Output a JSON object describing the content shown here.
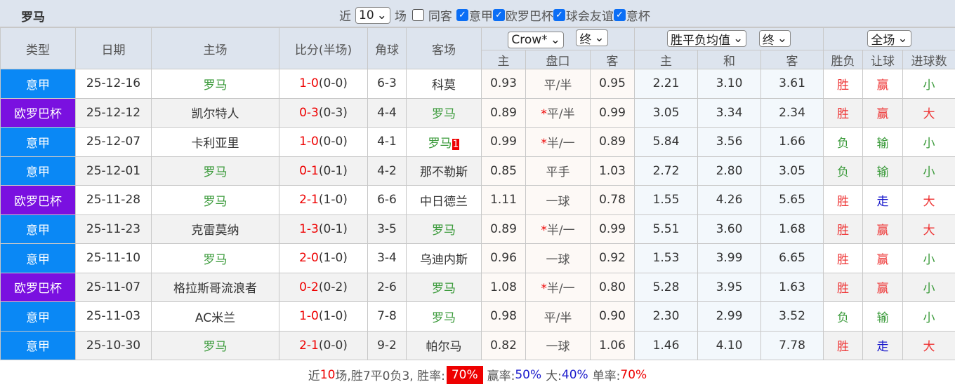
{
  "title": "罗马",
  "filters": {
    "near_label": "近",
    "count": "10",
    "games_label": "场",
    "same_away": "同客",
    "leagues": [
      "意甲",
      "欧罗巴杯",
      "球会友谊",
      "意杯"
    ]
  },
  "headers": {
    "type": "类型",
    "date": "日期",
    "home": "主场",
    "score": "比分(半场)",
    "corner": "角球",
    "away": "客场",
    "company": "Crow*",
    "final1": "终",
    "avg": "胜平负均值",
    "final2": "终",
    "period": "全场",
    "sub": [
      "主",
      "盘口",
      "客",
      "主",
      "和",
      "客",
      "胜负",
      "让球",
      "进球数"
    ]
  },
  "colors": {
    "意甲": "#0a88f5",
    "欧罗巴杯": "#7a10e0"
  },
  "rows": [
    {
      "type": "意甲",
      "date": "25-12-16",
      "home": "罗马",
      "score": "1-0",
      "half": "(0-0)",
      "corner": "6-3",
      "away": "科莫",
      "roma": "home",
      "a1": "0.93",
      "line": "平/半",
      "star": false,
      "a2": "0.95",
      "w": "2.21",
      "d": "3.10",
      "l": "3.61",
      "r": "胜",
      "h": "赢",
      "g": "小"
    },
    {
      "type": "欧罗巴杯",
      "date": "25-12-12",
      "home": "凯尔特人",
      "score": "0-3",
      "half": "(0-3)",
      "corner": "4-4",
      "away": "罗马",
      "roma": "away",
      "a1": "0.89",
      "line": "平/半",
      "star": true,
      "a2": "0.99",
      "w": "3.05",
      "d": "3.34",
      "l": "2.34",
      "r": "胜",
      "h": "赢",
      "g": "大"
    },
    {
      "type": "意甲",
      "date": "25-12-07",
      "home": "卡利亚里",
      "score": "1-0",
      "half": "(0-0)",
      "corner": "4-1",
      "away": "罗马",
      "roma": "away",
      "red": "1",
      "a1": "0.99",
      "line": "半/一",
      "star": true,
      "a2": "0.89",
      "w": "5.84",
      "d": "3.56",
      "l": "1.66",
      "r": "负",
      "h": "输",
      "g": "小"
    },
    {
      "type": "意甲",
      "date": "25-12-01",
      "home": "罗马",
      "score": "0-1",
      "half": "(0-1)",
      "corner": "4-2",
      "away": "那不勒斯",
      "roma": "home",
      "a1": "0.85",
      "line": "平手",
      "star": false,
      "a2": "1.03",
      "w": "2.72",
      "d": "2.80",
      "l": "3.05",
      "r": "负",
      "h": "输",
      "g": "小"
    },
    {
      "type": "欧罗巴杯",
      "date": "25-11-28",
      "home": "罗马",
      "score": "2-1",
      "half": "(1-0)",
      "corner": "6-6",
      "away": "中日德兰",
      "roma": "home",
      "a1": "1.11",
      "line": "一球",
      "star": false,
      "a2": "0.78",
      "w": "1.55",
      "d": "4.26",
      "l": "5.65",
      "r": "胜",
      "h": "走",
      "g": "大"
    },
    {
      "type": "意甲",
      "date": "25-11-23",
      "home": "克雷莫纳",
      "score": "1-3",
      "half": "(0-1)",
      "corner": "3-5",
      "away": "罗马",
      "roma": "away",
      "a1": "0.89",
      "line": "半/一",
      "star": true,
      "a2": "0.99",
      "w": "5.51",
      "d": "3.60",
      "l": "1.68",
      "r": "胜",
      "h": "赢",
      "g": "大"
    },
    {
      "type": "意甲",
      "date": "25-11-10",
      "home": "罗马",
      "score": "2-0",
      "half": "(1-0)",
      "corner": "3-4",
      "away": "乌迪内斯",
      "roma": "home",
      "a1": "0.96",
      "line": "一球",
      "star": false,
      "a2": "0.92",
      "w": "1.53",
      "d": "3.99",
      "l": "6.65",
      "r": "胜",
      "h": "赢",
      "g": "小"
    },
    {
      "type": "欧罗巴杯",
      "date": "25-11-07",
      "home": "格拉斯哥流浪者",
      "score": "0-2",
      "half": "(0-2)",
      "corner": "2-6",
      "away": "罗马",
      "roma": "away",
      "a1": "1.08",
      "line": "半/一",
      "star": true,
      "a2": "0.80",
      "w": "5.28",
      "d": "3.95",
      "l": "1.63",
      "r": "胜",
      "h": "赢",
      "g": "小"
    },
    {
      "type": "意甲",
      "date": "25-11-03",
      "home": "AC米兰",
      "score": "1-0",
      "half": "(1-0)",
      "corner": "7-8",
      "away": "罗马",
      "roma": "away",
      "a1": "0.98",
      "line": "平/半",
      "star": false,
      "a2": "0.90",
      "w": "2.30",
      "d": "2.99",
      "l": "3.52",
      "r": "负",
      "h": "输",
      "g": "小"
    },
    {
      "type": "意甲",
      "date": "25-10-30",
      "home": "罗马",
      "score": "2-1",
      "half": "(0-0)",
      "corner": "9-2",
      "away": "帕尔马",
      "roma": "home",
      "a1": "0.82",
      "line": "一球",
      "star": false,
      "a2": "1.06",
      "w": "1.46",
      "d": "4.10",
      "l": "7.78",
      "r": "胜",
      "h": "走",
      "g": "大"
    }
  ],
  "summary": {
    "p1": "近",
    "n": "10",
    "p2": "场,胜7平0负3, 胜率:",
    "win_rate": "70%",
    "p3": "赢率:",
    "handicap_rate": "50%",
    "p4": "大:",
    "over_rate": "40%",
    "p5": "单率:",
    "odd_rate": "70%"
  }
}
